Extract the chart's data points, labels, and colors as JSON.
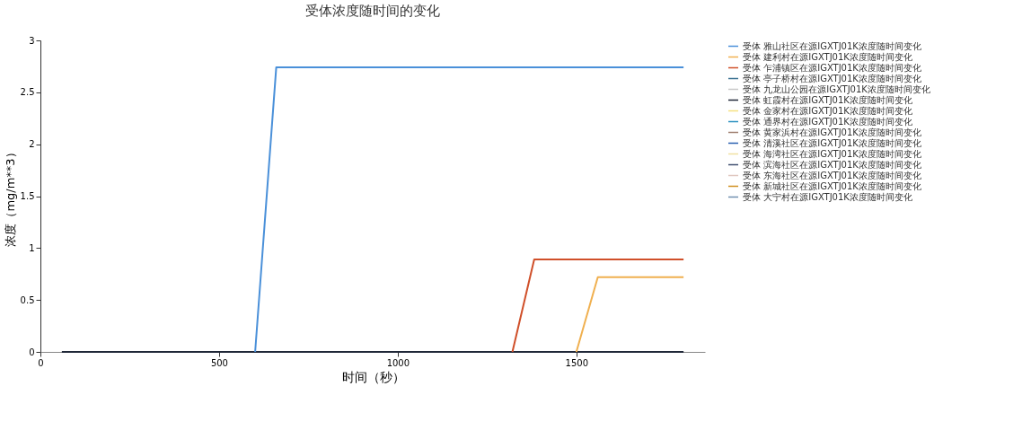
{
  "chart_data": {
    "type": "line",
    "title": "受体浓度随时间的变化",
    "xlabel": "时间（秒）",
    "ylabel": "浓度（mg/m**3）",
    "x": [
      60,
      601,
      660,
      1321,
      1382,
      1500,
      1560,
      1800
    ],
    "xlim": [
      0,
      1860
    ],
    "xticks": [
      0,
      500,
      1000,
      1500
    ],
    "ylim": [
      0,
      3
    ],
    "yticks": [
      0,
      0.5,
      1,
      1.5,
      2,
      2.5,
      3
    ],
    "grid": false,
    "legend": "top right",
    "marker": "none",
    "line_style": "solid",
    "series": [
      {
        "name": "受体 雅山社区在源IGXTJ01K浓度随时间变化",
        "color": "#4a90d9",
        "values": [
          null,
          0,
          2.74,
          2.74,
          2.74,
          2.74,
          2.74,
          2.74
        ]
      },
      {
        "name": "受体 建利村在源IGXTJ01K浓度随时间变化",
        "color": "#f0b050",
        "values": [
          null,
          null,
          null,
          null,
          null,
          0,
          0.72,
          0.72
        ]
      },
      {
        "name": "受体 乍浦镇区在源IGXTJ01K浓度随时间变化",
        "color": "#d0502a",
        "values": [
          null,
          null,
          null,
          0,
          0.89,
          0.89,
          0.89,
          0.89
        ]
      },
      {
        "name": "受体 亭子桥村在源IGXTJ01K浓度随时间变化",
        "color": "#3a7090",
        "values": [
          null,
          null,
          null,
          null,
          null,
          null,
          null,
          null
        ]
      },
      {
        "name": "受体 九龙山公园在源IGXTJ01K浓度随时间变化",
        "color": "#c8c8c8",
        "values": [
          null,
          null,
          null,
          null,
          null,
          null,
          null,
          null
        ]
      },
      {
        "name": "受体 虹霞村在源IGXTJ01K浓度随时间变化",
        "color": "#202838",
        "values": [
          0,
          0,
          0,
          0,
          0,
          0,
          0,
          0
        ]
      },
      {
        "name": "受体 金家村在源IGXTJ01K浓度随时间变化",
        "color": "#f5e080",
        "values": [
          null,
          null,
          null,
          null,
          null,
          null,
          null,
          null
        ]
      },
      {
        "name": "受体 通界村在源IGXTJ01K浓度随时间变化",
        "color": "#2a90c0",
        "values": [
          null,
          null,
          null,
          null,
          null,
          null,
          null,
          null
        ]
      },
      {
        "name": "受体 黄家浜村在源IGXTJ01K浓度随时间变化",
        "color": "#a08070",
        "values": [
          null,
          null,
          null,
          null,
          null,
          null,
          null,
          null
        ]
      },
      {
        "name": "受体 清溪社区在源IGXTJ01K浓度随时间变化",
        "color": "#2a60b0",
        "values": [
          null,
          null,
          null,
          null,
          null,
          null,
          null,
          null
        ]
      },
      {
        "name": "受体 海湾社区在源IGXTJ01K浓度随时间变化",
        "color": "#f0e0a0",
        "values": [
          null,
          null,
          null,
          null,
          null,
          null,
          null,
          null
        ]
      },
      {
        "name": "受体 滨海社区在源IGXTJ01K浓度随时间变化",
        "color": "#405070",
        "values": [
          null,
          null,
          null,
          null,
          null,
          null,
          null,
          null
        ]
      },
      {
        "name": "受体 东海社区在源IGXTJ01K浓度随时间变化",
        "color": "#e0c8c0",
        "values": [
          null,
          null,
          null,
          null,
          null,
          null,
          null,
          null
        ]
      },
      {
        "name": "受体 新城社区在源IGXTJ01K浓度随时间变化",
        "color": "#d09020",
        "values": [
          null,
          null,
          null,
          null,
          null,
          null,
          null,
          null
        ]
      },
      {
        "name": "受体 大宁村在源IGXTJ01K浓度随时间变化",
        "color": "#7090b0",
        "values": [
          null,
          null,
          null,
          null,
          null,
          null,
          null,
          null
        ]
      }
    ]
  }
}
